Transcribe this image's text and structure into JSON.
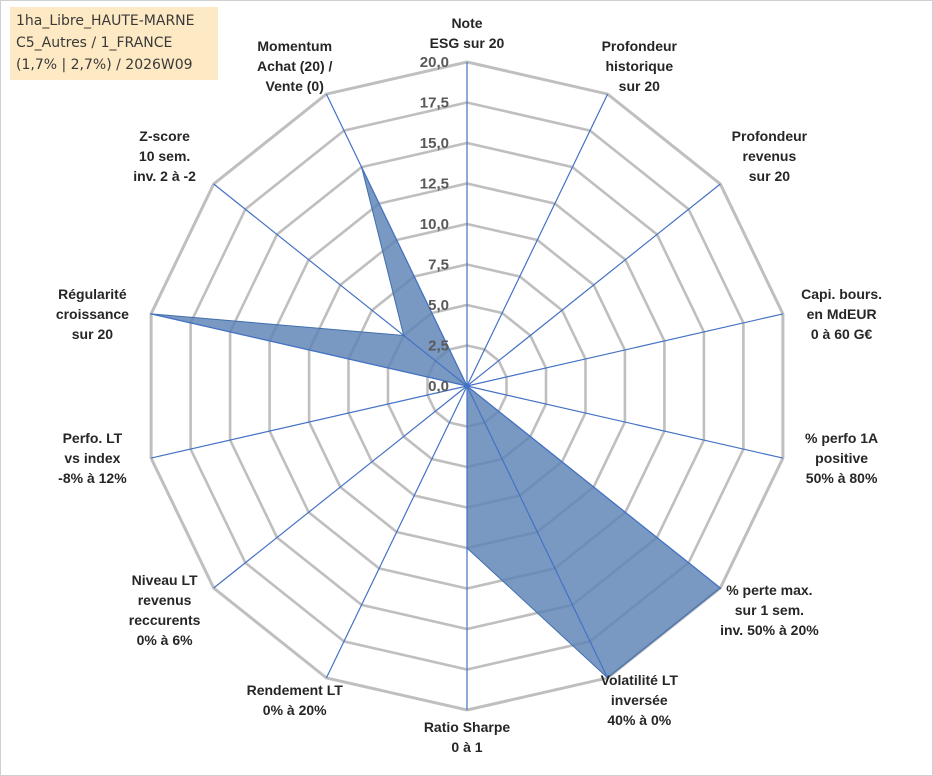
{
  "info": {
    "line1": "1ha_Libre_HAUTE-MARNE",
    "line2": "C5_Autres / 1_FRANCE",
    "line3": "(1,7% | 2,7%) / 2026W09"
  },
  "chart_data": {
    "type": "radar",
    "title": "",
    "axes": [
      [
        "Note",
        "ESG sur 20"
      ],
      [
        "Profondeur",
        "historique",
        "sur 20"
      ],
      [
        "Profondeur",
        "revenus",
        "sur 20"
      ],
      [
        "Capi. bours.",
        "en MdEUR",
        "0 à 60 G€"
      ],
      [
        "% perfo 1A",
        "positive",
        "50% à 80%"
      ],
      [
        "% perte max.",
        "sur 1 sem.",
        "inv. 50% à 20%"
      ],
      [
        "Volatilité LT",
        "inversée",
        "40% à 0%"
      ],
      [
        "Ratio Sharpe",
        "0 à 1"
      ],
      [
        "Rendement LT",
        "0% à 20%"
      ],
      [
        "Niveau LT",
        "revenus",
        "reccurents",
        "0% à 6%"
      ],
      [
        "Perfo. LT",
        "vs index",
        "-8% à 12%"
      ],
      [
        "Régularité",
        "croissance",
        "sur 20"
      ],
      [
        "Z-score",
        "10 sem.",
        "inv. 2 à -2"
      ],
      [
        "Momentum",
        "Achat (20) /",
        "Vente (0)"
      ]
    ],
    "series": [
      {
        "values": [
          0,
          0,
          0,
          0,
          0,
          20,
          20,
          10,
          0,
          0,
          0,
          20,
          5,
          15
        ]
      }
    ],
    "r_range": [
      0,
      20
    ],
    "r_ticks": [
      "0,0",
      "2,5",
      "5,0",
      "7,5",
      "10,0",
      "12,5",
      "15,0",
      "17,5",
      "20,0"
    ],
    "colors": {
      "fill": "#5b83b5",
      "line": "#3f6fae",
      "grid": "#bfbfbf",
      "spoke": "#4472c4"
    }
  }
}
